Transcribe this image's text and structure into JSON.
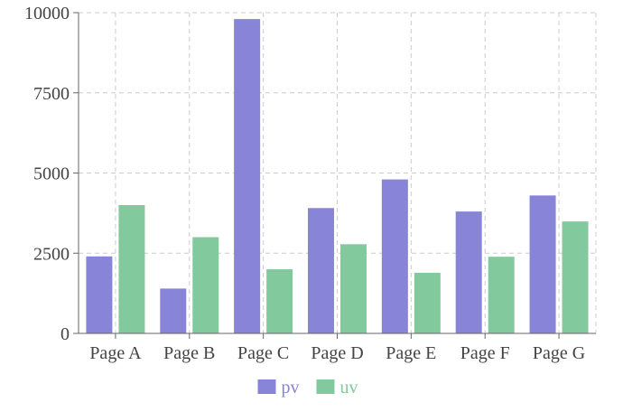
{
  "chart_data": {
    "type": "bar",
    "categories": [
      "Page A",
      "Page B",
      "Page C",
      "Page D",
      "Page E",
      "Page F",
      "Page G"
    ],
    "series": [
      {
        "name": "pv",
        "color": "#8884d8",
        "values": [
          2400,
          1398,
          9800,
          3908,
          4800,
          3800,
          4300
        ]
      },
      {
        "name": "uv",
        "color": "#82ca9d",
        "values": [
          4000,
          3000,
          2000,
          2780,
          1890,
          2390,
          3490
        ]
      }
    ],
    "ylim": [
      0,
      10000
    ],
    "yticks": [
      0,
      2500,
      5000,
      7500,
      10000
    ],
    "grid": true,
    "legend": "bottom-center"
  }
}
